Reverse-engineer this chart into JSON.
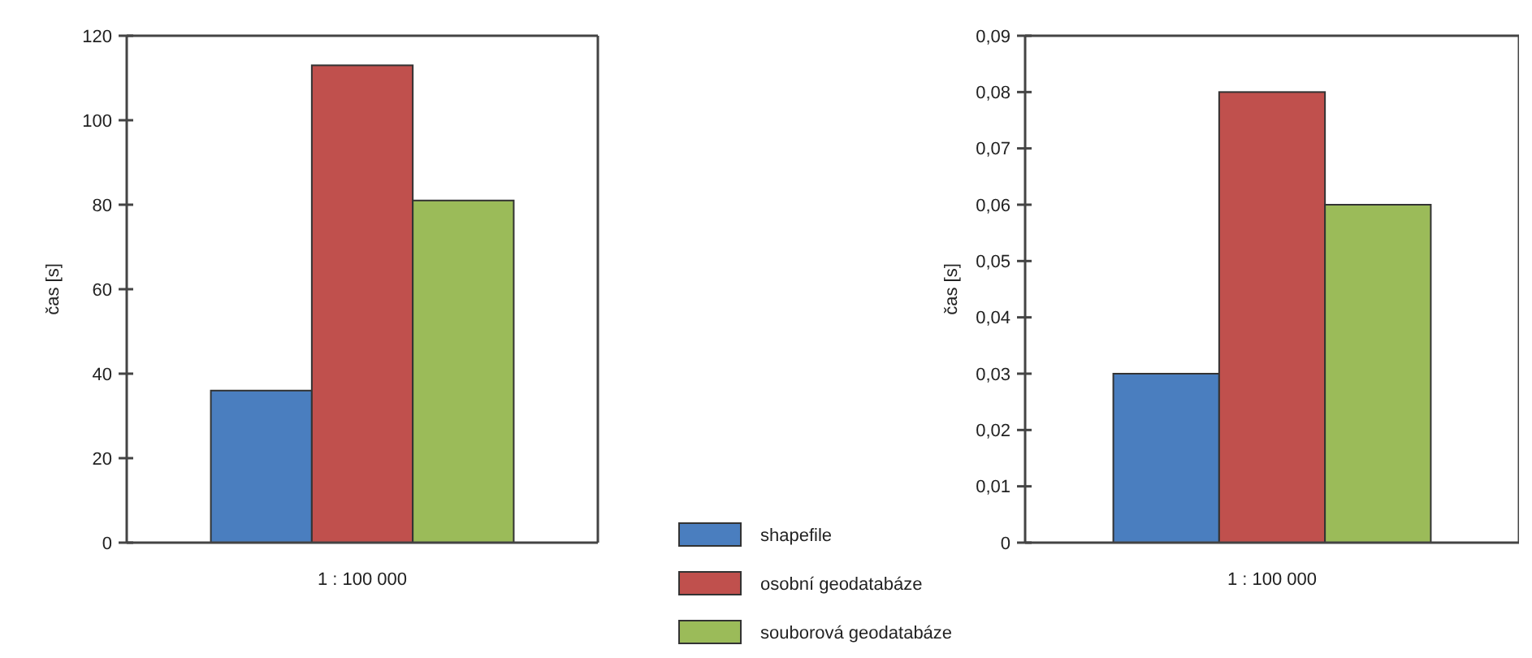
{
  "chart_data": [
    {
      "type": "bar",
      "ylabel": "čas [s]",
      "categories": [
        "1 : 100 000"
      ],
      "ylim": [
        0,
        120
      ],
      "yticks": [
        0,
        20,
        40,
        60,
        80,
        100,
        120
      ],
      "grid": false,
      "legend": false,
      "series": [
        {
          "color": "#4a7ebf",
          "values": [
            36
          ]
        },
        {
          "color": "#c0504d",
          "values": [
            113
          ]
        },
        {
          "color": "#9bbb59",
          "values": [
            81
          ]
        }
      ]
    },
    {
      "type": "bar",
      "ylabel": "čas [s]",
      "categories": [
        "1 : 100 000"
      ],
      "ylim": [
        0,
        0.09
      ],
      "yticks": [
        0,
        {
          "value": 0.01,
          "label": "0,01"
        },
        {
          "value": 0.02,
          "label": "0,02"
        },
        {
          "value": 0.03,
          "label": "0,03"
        },
        {
          "value": 0.04,
          "label": "0,04"
        },
        {
          "value": 0.05,
          "label": "0,05"
        },
        {
          "value": 0.06,
          "label": "0,06"
        },
        {
          "value": 0.07,
          "label": "0,07"
        },
        {
          "value": 0.08,
          "label": "0,08"
        },
        {
          "value": 0.09,
          "label": "0,09"
        }
      ],
      "grid": false,
      "legend": "bottom left",
      "series": [
        {
          "name": "shapefile",
          "color": "#4a7ebf",
          "values": [
            0.03
          ]
        },
        {
          "name": "osobní geodatabáze",
          "color": "#c0504d",
          "values": [
            0.08
          ]
        },
        {
          "name": "souborová geodatabáze",
          "color": "#9bbb59",
          "values": [
            0.06
          ]
        }
      ]
    }
  ]
}
